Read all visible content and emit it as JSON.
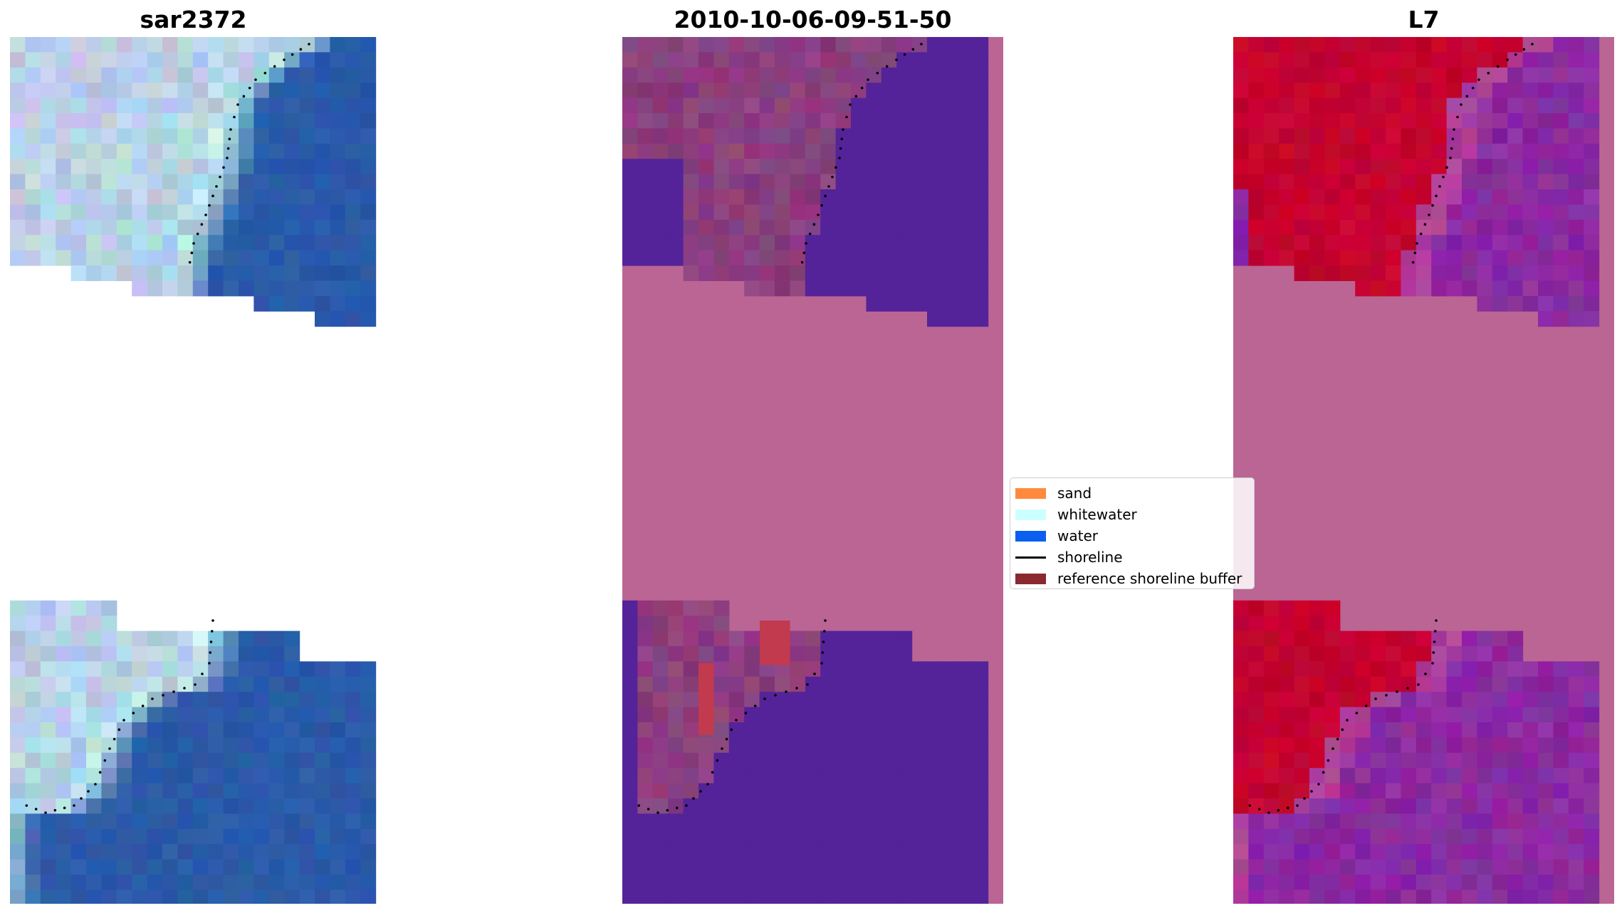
{
  "chart_data": {
    "type": "heatmap",
    "panels": [
      {
        "title": "sar2372",
        "content": "RGB image",
        "colors": {
          "land_light": "#eef4ff",
          "water": "#2a5aa8",
          "whitewater": "#d8fff4"
        }
      },
      {
        "title": "2010-10-06-09-51-50",
        "content": "classified image",
        "colors": {
          "sand_zone": "#8b3f7e",
          "water": "#542399",
          "no_data": "#bb6594",
          "buffer": "#c23a4e"
        }
      },
      {
        "title": "L7",
        "content": "MNDWI image",
        "colors": {
          "land": "#c4002f",
          "water": "#8a2aa0",
          "no_data": "#bb6594"
        }
      }
    ],
    "legend": {
      "position": "center",
      "entries": [
        {
          "label": "sand",
          "color": "#ff8a3d",
          "kind": "patch"
        },
        {
          "label": "whitewater",
          "color": "#ccffff",
          "kind": "patch"
        },
        {
          "label": "water",
          "color": "#0a5ff0",
          "kind": "patch"
        },
        {
          "label": "shoreline",
          "color": "#000000",
          "kind": "line"
        },
        {
          "label": "reference shoreline buffer",
          "color": "#8a2a2e",
          "kind": "patch"
        }
      ]
    },
    "shoreline": {
      "style": "dotted",
      "color": "#000000"
    }
  }
}
